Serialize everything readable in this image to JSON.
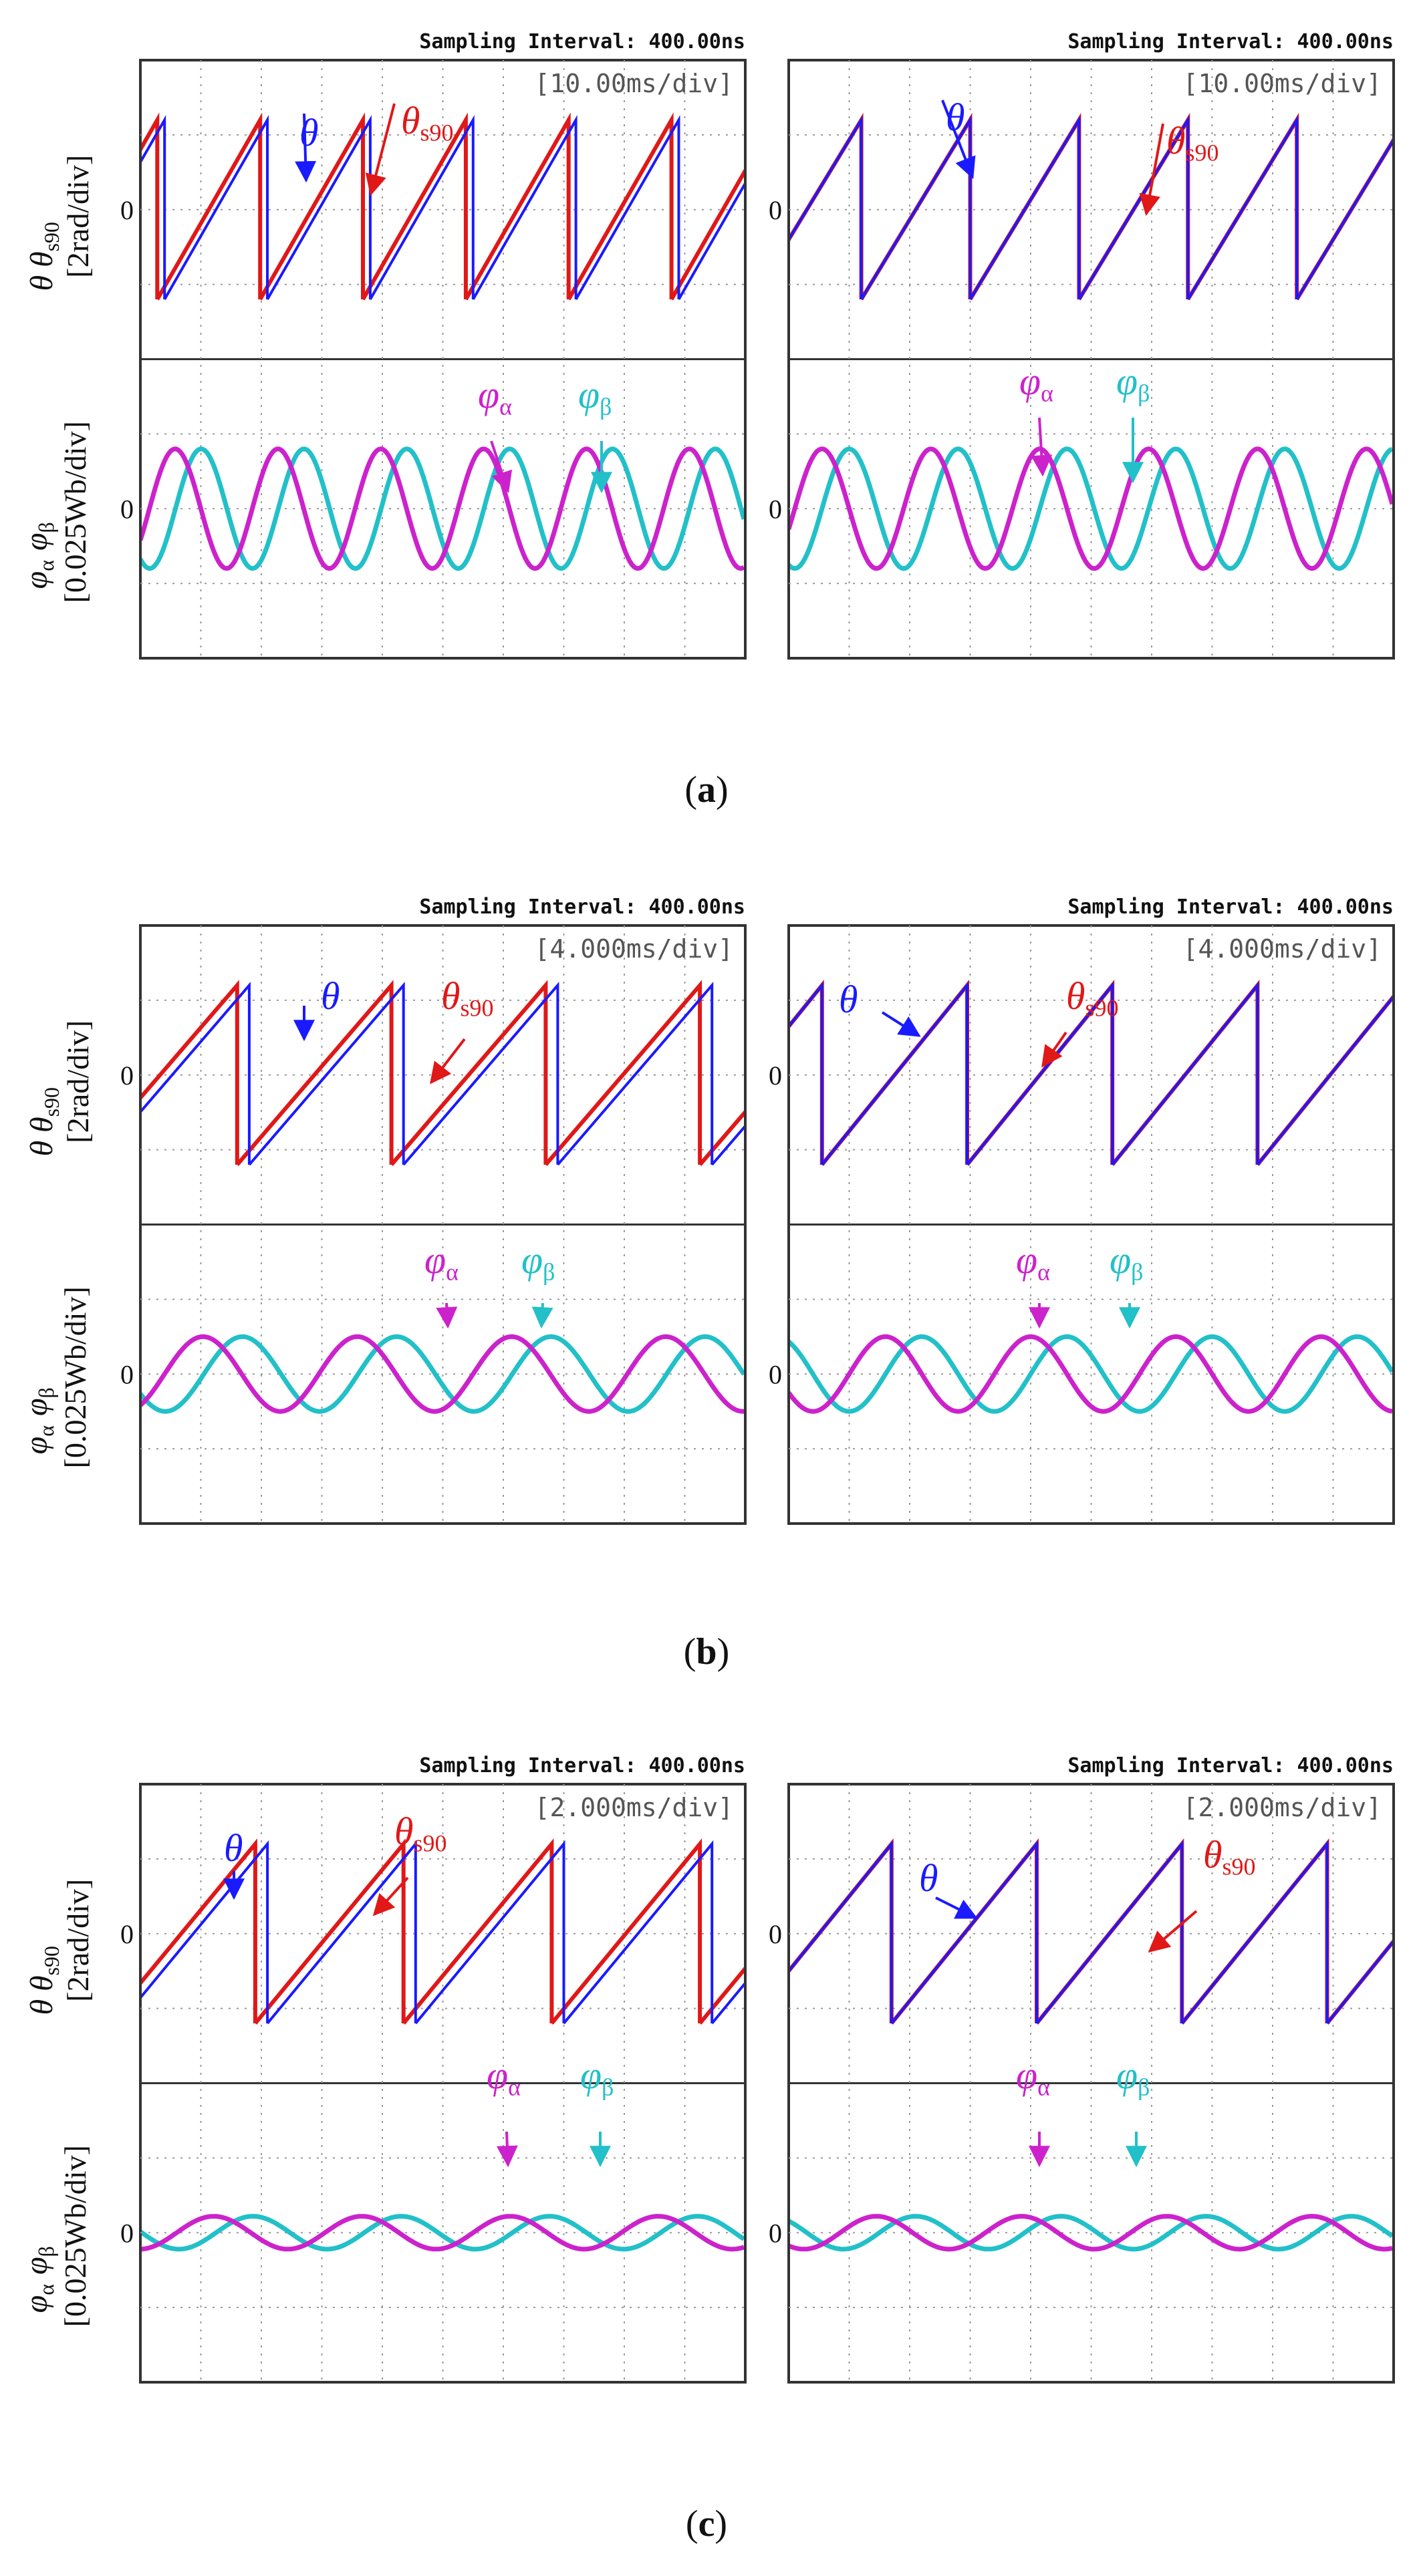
{
  "colors": {
    "theta": "#1a1aff",
    "theta_s90": "#e01818",
    "phi_alpha": "#cc22cc",
    "phi_beta": "#22c0c8",
    "grid": "#9a9a9a",
    "frame": "#333333"
  },
  "common": {
    "sampling_interval": "Sampling Interval:  400.00ns",
    "zero_label": "0",
    "theta_label": "θ",
    "theta_s90_label": "θ",
    "theta_s90_sub": "s90",
    "phi_label": "φ",
    "alpha_sub": "α",
    "beta_sub": "β",
    "y_top_symbols": "θ  θ",
    "y_top_sub": "s90",
    "y_top_unit": "[2rad/div]",
    "y_bottom_symbols": "φ  φ",
    "y_bottom_sub_a": "α",
    "y_bottom_sub_b": "β",
    "y_bottom_unit": "[0.025Wb/div]"
  },
  "chart_data": [
    {
      "id": "a",
      "caption": "(a)",
      "panel": "left",
      "type": "line",
      "time_div": "[10.00ms/div]",
      "x_divisions": 10,
      "y_unit_top": "2rad/div",
      "y_unit_bottom": "0.025Wb/div",
      "series": [
        {
          "name": "θ",
          "kind": "sawtooth",
          "period_div": 1.7,
          "phase_div": 0.4,
          "amplitude_div": 1.2
        },
        {
          "name": "θs90",
          "kind": "sawtooth",
          "period_div": 1.7,
          "phase_div": 0.28,
          "amplitude_div": 1.2
        },
        {
          "name": "φα",
          "kind": "sine",
          "period_div": 1.7,
          "phase_div": 0.15,
          "amplitude_div": 0.8
        },
        {
          "name": "φβ",
          "kind": "sine",
          "period_div": 1.7,
          "phase_div": 0.58,
          "amplitude_div": 0.8
        }
      ]
    },
    {
      "id": "a",
      "caption": "(a)",
      "panel": "right",
      "type": "line",
      "time_div": "[10.00ms/div]",
      "x_divisions": 10,
      "y_unit_top": "2rad/div",
      "y_unit_bottom": "0.025Wb/div",
      "series": [
        {
          "name": "θ",
          "kind": "sawtooth",
          "period_div": 1.8,
          "phase_div": 1.2,
          "amplitude_div": 1.2
        },
        {
          "name": "θs90",
          "kind": "sawtooth",
          "period_div": 1.8,
          "phase_div": 1.2,
          "amplitude_div": 1.2
        },
        {
          "name": "φα",
          "kind": "sine",
          "period_div": 1.8,
          "phase_div": 0.1,
          "amplitude_div": 0.8
        },
        {
          "name": "φβ",
          "kind": "sine",
          "period_div": 1.8,
          "phase_div": 0.55,
          "amplitude_div": 0.8
        }
      ]
    },
    {
      "id": "b",
      "caption": "(b)",
      "panel": "left",
      "type": "line",
      "time_div": "[4.000ms/div]",
      "x_divisions": 10,
      "y_unit_top": "2rad/div",
      "y_unit_bottom": "0.025Wb/div",
      "series": [
        {
          "name": "θ",
          "kind": "sawtooth",
          "period_div": 2.55,
          "phase_div": 1.8,
          "amplitude_div": 1.2
        },
        {
          "name": "θs90",
          "kind": "sawtooth",
          "period_div": 2.55,
          "phase_div": 1.6,
          "amplitude_div": 1.2
        },
        {
          "name": "φα",
          "kind": "sine",
          "period_div": 2.55,
          "phase_div": 0.4,
          "amplitude_div": 0.5
        },
        {
          "name": "φβ",
          "kind": "sine",
          "period_div": 2.55,
          "phase_div": 1.05,
          "amplitude_div": 0.5
        }
      ]
    },
    {
      "id": "b",
      "caption": "(b)",
      "panel": "right",
      "type": "line",
      "time_div": "[4.000ms/div]",
      "x_divisions": 10,
      "y_unit_top": "2rad/div",
      "y_unit_bottom": "0.025Wb/div",
      "series": [
        {
          "name": "θ",
          "kind": "sawtooth",
          "period_div": 2.4,
          "phase_div": 0.55,
          "amplitude_div": 1.2
        },
        {
          "name": "θs90",
          "kind": "sawtooth",
          "period_div": 2.4,
          "phase_div": 0.55,
          "amplitude_div": 1.2
        },
        {
          "name": "φα",
          "kind": "sine",
          "period_div": 2.4,
          "phase_div": 1.0,
          "amplitude_div": 0.5
        },
        {
          "name": "φβ",
          "kind": "sine",
          "period_div": 2.4,
          "phase_div": 1.6,
          "amplitude_div": 0.5
        }
      ]
    },
    {
      "id": "c",
      "caption": "(c)",
      "panel": "left",
      "type": "line",
      "time_div": "[2.000ms/div]",
      "x_divisions": 10,
      "y_unit_top": "2rad/div",
      "y_unit_bottom": "0.025Wb/div",
      "series": [
        {
          "name": "θ",
          "kind": "sawtooth",
          "period_div": 2.45,
          "phase_div": 2.1,
          "amplitude_div": 1.2
        },
        {
          "name": "θs90",
          "kind": "sawtooth",
          "period_div": 2.45,
          "phase_div": 1.9,
          "amplitude_div": 1.2
        },
        {
          "name": "φα",
          "kind": "sine",
          "period_div": 2.45,
          "phase_div": 0.6,
          "amplitude_div": 0.22
        },
        {
          "name": "φβ",
          "kind": "sine",
          "period_div": 2.45,
          "phase_div": 1.25,
          "amplitude_div": 0.22
        }
      ]
    },
    {
      "id": "c",
      "caption": "(c)",
      "panel": "right",
      "type": "line",
      "time_div": "[2.000ms/div]",
      "x_divisions": 10,
      "y_unit_top": "2rad/div",
      "y_unit_bottom": "0.025Wb/div",
      "series": [
        {
          "name": "θ",
          "kind": "sawtooth",
          "period_div": 2.4,
          "phase_div": 1.7,
          "amplitude_div": 1.2
        },
        {
          "name": "θs90",
          "kind": "sawtooth",
          "period_div": 2.4,
          "phase_div": 1.7,
          "amplitude_div": 1.2
        },
        {
          "name": "φα",
          "kind": "sine",
          "period_div": 2.4,
          "phase_div": 0.85,
          "amplitude_div": 0.22
        },
        {
          "name": "φβ",
          "kind": "sine",
          "period_div": 2.4,
          "phase_div": 1.5,
          "amplitude_div": 0.22
        }
      ]
    }
  ]
}
